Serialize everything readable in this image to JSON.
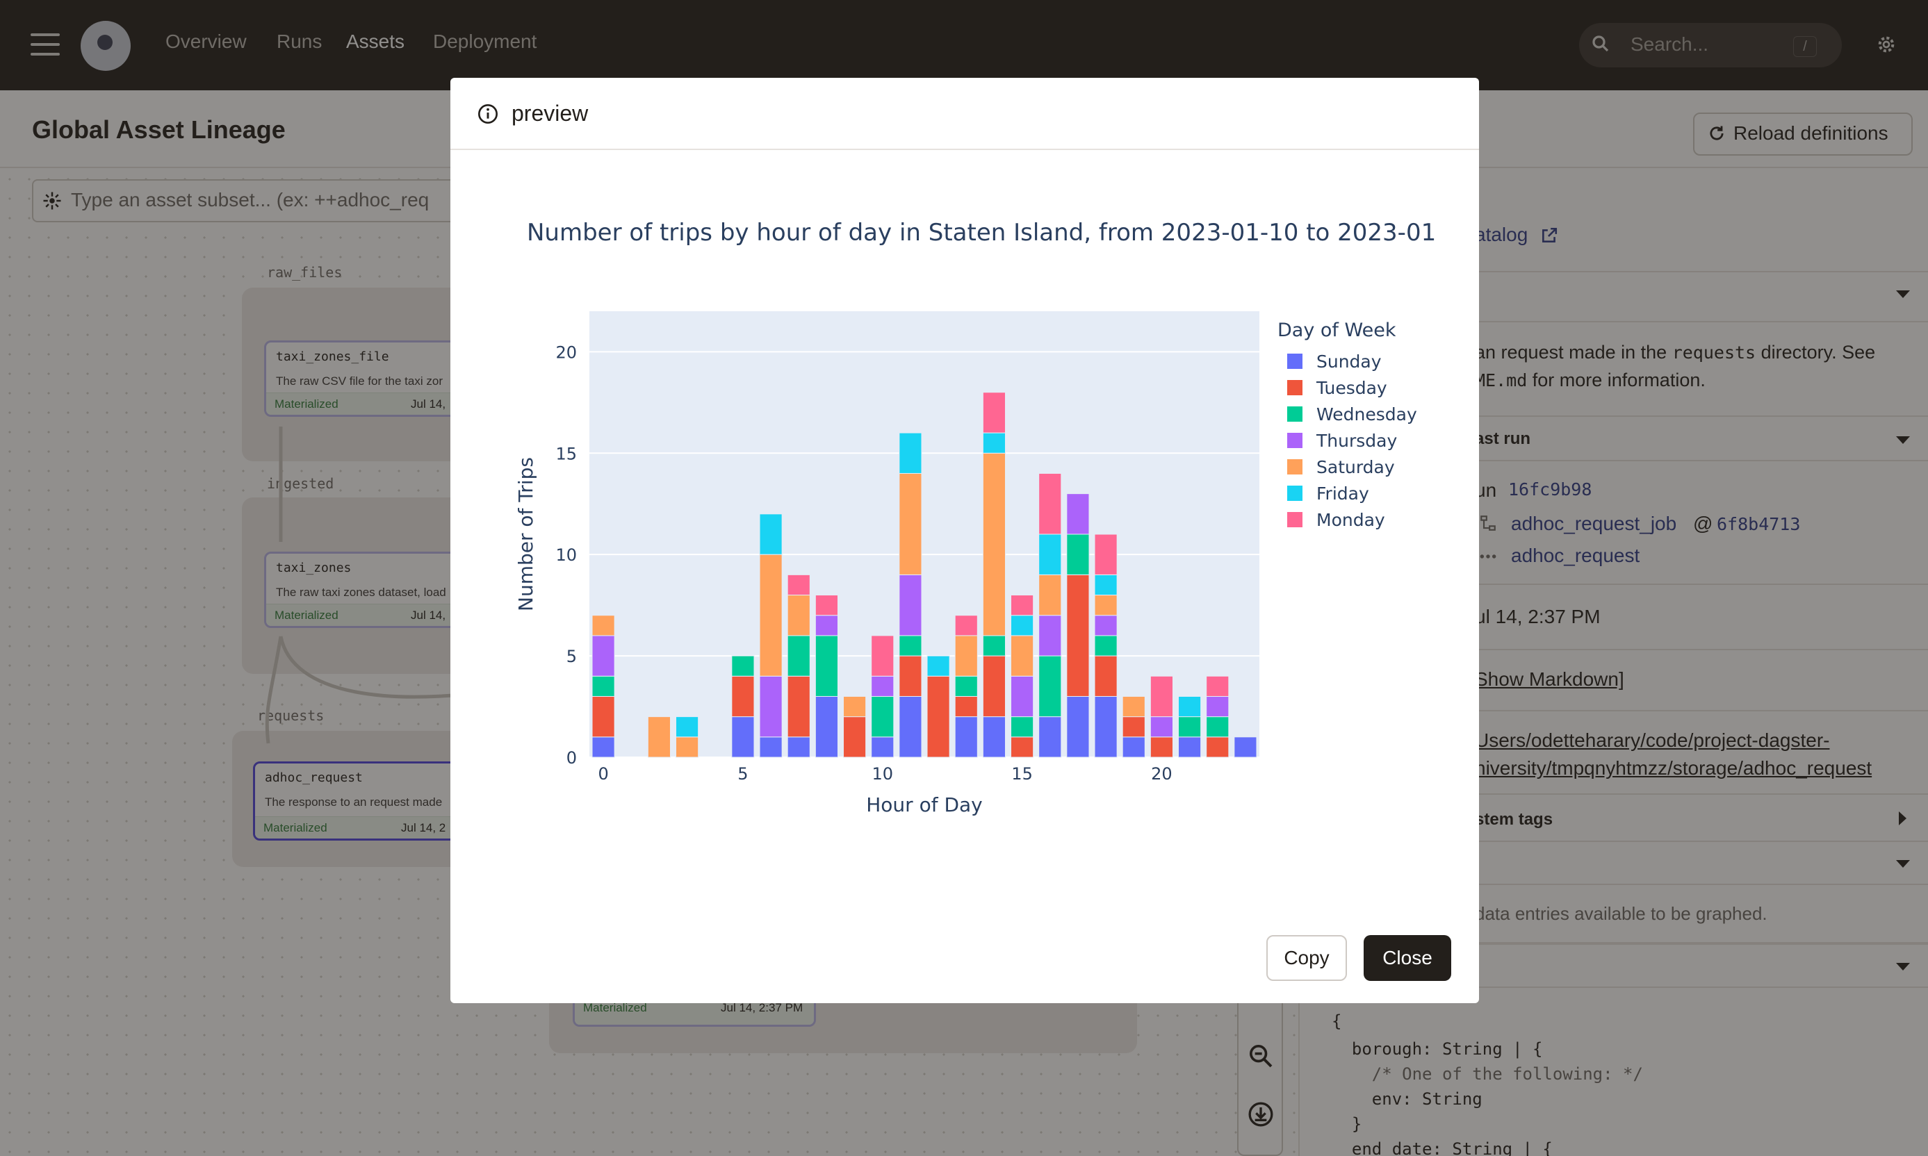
{
  "topbar": {
    "nav": [
      "Overview",
      "Runs",
      "Assets",
      "Deployment"
    ],
    "active_nav": "Assets",
    "search_placeholder": "Search...",
    "search_shortcut": "/"
  },
  "page": {
    "title": "Global Asset Lineage",
    "reload_label": "Reload definitions",
    "subset_placeholder": "Type an asset subset... (ex: ++adhoc_req"
  },
  "graph": {
    "groups": [
      "raw_files",
      "ingested",
      "requests"
    ],
    "nodes": [
      {
        "title": "taxi_zones_file",
        "desc": "The raw CSV file for the taxi zor",
        "status": "Materialized",
        "date": "Jul 14,"
      },
      {
        "title": "taxi_zones",
        "desc": "The raw taxi zones dataset, load",
        "status": "Materialized",
        "date": "Jul 14,"
      },
      {
        "title": "adhoc_request",
        "desc": "The response to an request made",
        "status": "Materialized",
        "date": "Jul 14, 2"
      }
    ],
    "bottom_node": {
      "status": "Materialized",
      "date": "Jul 14, 2:37 PM"
    }
  },
  "panel": {
    "catalog_link": "atalog",
    "desc_line1_pre": "an request made in the ",
    "desc_line1_code": "requests",
    "desc_line1_post": " directory. See",
    "desc_line2_code": "ME.md",
    "desc_line2_post": " for more information.",
    "last_run_header": "ast run",
    "run_label": "un",
    "run_id": "16fc9b98",
    "job_name": "adhoc_request_job",
    "job_at": "@",
    "job_hash": "6f8b4713",
    "asset_name": "adhoc_request",
    "timestamp": "ul 14, 2:37 PM",
    "show_markdown": "Show Markdown]",
    "path_line1": "Users/odetteharary/code/project-dagster-",
    "path_line2": "niversity/tmpqnyhtmzz/storage/adhoc_request",
    "system_tags": "stem tags",
    "no_entries": "data entries available to be graphed.",
    "code_lines": [
      "{",
      "  borough: String | {",
      "    /* One of the following: */",
      "    env: String",
      "  }",
      "  end_date: String | {"
    ]
  },
  "modal": {
    "title": "preview",
    "copy_label": "Copy",
    "close_label": "Close"
  },
  "chart_data": {
    "type": "bar",
    "stacked": true,
    "title": "Number of trips by hour of day in Staten Island, from 2023-01-10 to 2023-01",
    "xlabel": "Hour of Day",
    "ylabel": "Number of Trips",
    "legend_title": "Day of Week",
    "legend_position": "right",
    "xlim": [
      -0.5,
      23.5
    ],
    "ylim": [
      0,
      22
    ],
    "xticks": [
      0,
      5,
      10,
      15,
      20
    ],
    "yticks": [
      0,
      5,
      10,
      15,
      20
    ],
    "grid": true,
    "background": "#e5ecf6",
    "categories": [
      0,
      1,
      2,
      3,
      4,
      5,
      6,
      7,
      8,
      9,
      10,
      11,
      12,
      13,
      14,
      15,
      16,
      17,
      18,
      19,
      20,
      21,
      22,
      23
    ],
    "series": [
      {
        "name": "Sunday",
        "color": "#636efa",
        "values": [
          1,
          0,
          0,
          0,
          0,
          2,
          1,
          1,
          3,
          0,
          1,
          3,
          0,
          2,
          2,
          0,
          2,
          3,
          3,
          1,
          0,
          1,
          0,
          1
        ]
      },
      {
        "name": "Tuesday",
        "color": "#ef553b",
        "values": [
          2,
          0,
          0,
          0,
          0,
          2,
          0,
          3,
          0,
          2,
          0,
          2,
          4,
          1,
          3,
          1,
          0,
          6,
          2,
          1,
          1,
          0,
          1,
          0
        ]
      },
      {
        "name": "Wednesday",
        "color": "#00cc96",
        "values": [
          1,
          0,
          0,
          0,
          0,
          1,
          0,
          2,
          3,
          0,
          2,
          1,
          0,
          1,
          1,
          1,
          3,
          2,
          1,
          0,
          0,
          1,
          1,
          0
        ]
      },
      {
        "name": "Thursday",
        "color": "#ab63fa",
        "values": [
          2,
          0,
          0,
          0,
          0,
          0,
          3,
          0,
          1,
          0,
          1,
          3,
          0,
          0,
          0,
          2,
          2,
          2,
          1,
          0,
          1,
          0,
          1,
          0
        ]
      },
      {
        "name": "Saturday",
        "color": "#ffa15a",
        "values": [
          1,
          0,
          2,
          1,
          0,
          0,
          6,
          2,
          0,
          1,
          0,
          5,
          0,
          2,
          9,
          2,
          2,
          0,
          1,
          1,
          0,
          0,
          0,
          0
        ]
      },
      {
        "name": "Friday",
        "color": "#19d3f3",
        "values": [
          0,
          0,
          0,
          1,
          0,
          0,
          2,
          0,
          0,
          0,
          0,
          2,
          1,
          0,
          1,
          1,
          2,
          0,
          1,
          0,
          0,
          1,
          0,
          0
        ]
      },
      {
        "name": "Monday",
        "color": "#ff6692",
        "values": [
          0,
          0,
          0,
          0,
          0,
          0,
          0,
          1,
          1,
          0,
          2,
          0,
          0,
          1,
          2,
          1,
          3,
          0,
          2,
          0,
          2,
          0,
          1,
          0
        ]
      }
    ]
  }
}
